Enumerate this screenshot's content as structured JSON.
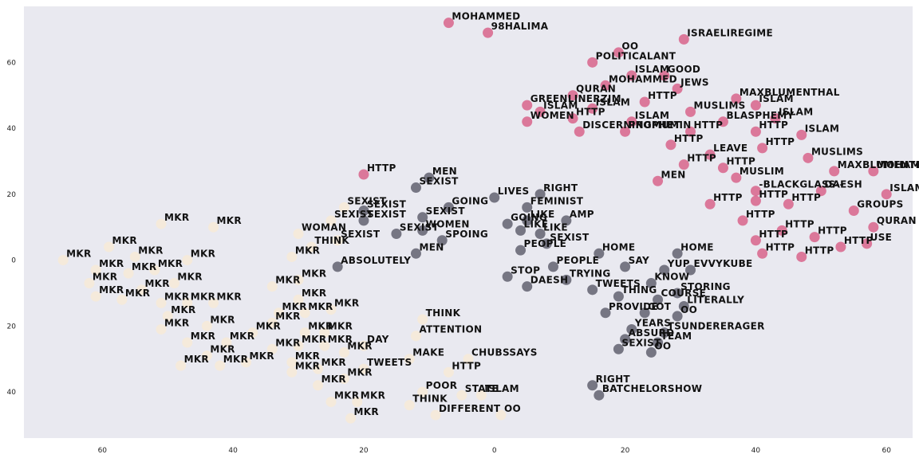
{
  "chart_data": {
    "type": "scatter",
    "title": "",
    "xlabel": "",
    "ylabel": "",
    "xlim": [
      -72,
      64
    ],
    "ylim": [
      -54,
      77
    ],
    "x_axis_inverted": true,
    "y_axis_inverted": true,
    "xticks": [
      -60,
      -40,
      -20,
      0,
      20,
      40,
      60
    ],
    "yticks": [
      -40,
      -20,
      0,
      20,
      40,
      60
    ],
    "xtick_labels": [
      "60",
      "40",
      "20",
      "0",
      "20",
      "40",
      "60"
    ],
    "ytick_labels": [
      "40",
      "20",
      "0",
      "20",
      "40",
      "60"
    ],
    "grid": false,
    "background_color": "#e9e9f0",
    "legend": null,
    "colors": {
      "crimson": "#d6517d",
      "dark": "#4f4f5f",
      "beige": "#f6ead8"
    },
    "series": [
      {
        "color": "#d6517d",
        "points": [
          {
            "x": -7,
            "y": 72,
            "label": "MOHAMMED"
          },
          {
            "x": -1,
            "y": 69,
            "label": "98HALIMA"
          },
          {
            "x": 15,
            "y": 60,
            "label": "POLITICALANT"
          },
          {
            "x": 29,
            "y": 67,
            "label": "ISRAELIREGIME"
          },
          {
            "x": 19,
            "y": 63,
            "label": "OO"
          },
          {
            "x": 21,
            "y": 56,
            "label": "ISLAM"
          },
          {
            "x": 26,
            "y": 56,
            "label": "GOOD"
          },
          {
            "x": 17,
            "y": 53,
            "label": "MOHAMMED"
          },
          {
            "x": 28,
            "y": 52,
            "label": "JEWS"
          },
          {
            "x": 37,
            "y": 49,
            "label": "MAXBLUMENTHAL"
          },
          {
            "x": 12,
            "y": 50,
            "label": "QURAN"
          },
          {
            "x": 23,
            "y": 48,
            "label": "HTTP"
          },
          {
            "x": 40,
            "y": 47,
            "label": "ISLAM"
          },
          {
            "x": 5,
            "y": 47,
            "label": "GREENLINERZJM"
          },
          {
            "x": 15,
            "y": 46,
            "label": "ISLAM"
          },
          {
            "x": 30,
            "y": 45,
            "label": "MUSLIMS"
          },
          {
            "x": 7,
            "y": 45,
            "label": "ISLAM"
          },
          {
            "x": 12,
            "y": 43,
            "label": "HTTP"
          },
          {
            "x": 21,
            "y": 42,
            "label": "ISLAM"
          },
          {
            "x": 35,
            "y": 42,
            "label": "BLASPHEMY"
          },
          {
            "x": 43,
            "y": 43,
            "label": "ISLAM"
          },
          {
            "x": 5,
            "y": 42,
            "label": "WOMEN"
          },
          {
            "x": 13,
            "y": 39,
            "label": "DISCERNINGMUMIN"
          },
          {
            "x": 20,
            "y": 39,
            "label": "PROPHET"
          },
          {
            "x": 30,
            "y": 39,
            "label": "HTTP"
          },
          {
            "x": 40,
            "y": 39,
            "label": "HTTP"
          },
          {
            "x": 47,
            "y": 38,
            "label": "ISLAM"
          },
          {
            "x": 41,
            "y": 34,
            "label": "HTTP"
          },
          {
            "x": 27,
            "y": 35,
            "label": "HTTP"
          },
          {
            "x": 33,
            "y": 32,
            "label": "LEAVE"
          },
          {
            "x": 29,
            "y": 29,
            "label": "HTTP"
          },
          {
            "x": 35,
            "y": 28,
            "label": "HTTP"
          },
          {
            "x": 48,
            "y": 31,
            "label": "MUSLIMS"
          },
          {
            "x": 37,
            "y": 25,
            "label": "MUSLIM"
          },
          {
            "x": 25,
            "y": 24,
            "label": "MEN"
          },
          {
            "x": 52,
            "y": 27,
            "label": "MAXBLUMENTHAL"
          },
          {
            "x": 58,
            "y": 27,
            "label": "MOHAMMED"
          },
          {
            "x": 40,
            "y": 21,
            "label": "-BLACKGLASS--"
          },
          {
            "x": 50,
            "y": 21,
            "label": "DAESH"
          },
          {
            "x": 60,
            "y": 20,
            "label": "ISLAM"
          },
          {
            "x": 33,
            "y": 17,
            "label": "HTTP"
          },
          {
            "x": 40,
            "y": 18,
            "label": "HTTP"
          },
          {
            "x": 45,
            "y": 17,
            "label": "HTTP"
          },
          {
            "x": 55,
            "y": 15,
            "label": "GROUPS"
          },
          {
            "x": -20,
            "y": 26,
            "label": "HTTP"
          },
          {
            "x": 38,
            "y": 12,
            "label": "HTTP"
          },
          {
            "x": 58,
            "y": 10,
            "label": "QURAN"
          },
          {
            "x": 44,
            "y": 9,
            "label": "HTTP"
          },
          {
            "x": 49,
            "y": 7,
            "label": "HTTP"
          },
          {
            "x": 40,
            "y": 6,
            "label": "HTTP"
          },
          {
            "x": 57,
            "y": 5,
            "label": "USE"
          },
          {
            "x": 53,
            "y": 4,
            "label": "HTTP"
          },
          {
            "x": 41,
            "y": 2,
            "label": "HTTP"
          },
          {
            "x": 47,
            "y": 1,
            "label": "HTTP"
          }
        ]
      },
      {
        "color": "#4f4f5f",
        "points": [
          {
            "x": -10,
            "y": 25,
            "label": "MEN"
          },
          {
            "x": -12,
            "y": 22,
            "label": "SEXIST"
          },
          {
            "x": 0,
            "y": 19,
            "label": "LIVES"
          },
          {
            "x": 7,
            "y": 20,
            "label": "RIGHT"
          },
          {
            "x": -7,
            "y": 16,
            "label": "GOING"
          },
          {
            "x": 5,
            "y": 16,
            "label": "FEMINIST"
          },
          {
            "x": -20,
            "y": 15,
            "label": "SEXIST"
          },
          {
            "x": -11,
            "y": 13,
            "label": "SEXIST"
          },
          {
            "x": 5,
            "y": 12,
            "label": "LIKE"
          },
          {
            "x": 11,
            "y": 12,
            "label": "AMP"
          },
          {
            "x": -20,
            "y": 12,
            "label": "SEXIST"
          },
          {
            "x": 2,
            "y": 11,
            "label": "GOING"
          },
          {
            "x": 4,
            "y": 9,
            "label": "LIKE"
          },
          {
            "x": 7,
            "y": 8,
            "label": "LIKE"
          },
          {
            "x": -15,
            "y": 8,
            "label": "SEXIST"
          },
          {
            "x": -11,
            "y": 9,
            "label": "WOMEN"
          },
          {
            "x": -8,
            "y": 6,
            "label": "SPOING"
          },
          {
            "x": 8,
            "y": 5,
            "label": "SEXIST"
          },
          {
            "x": -12,
            "y": 2,
            "label": "MEN"
          },
          {
            "x": 4,
            "y": 3,
            "label": "PEOPLE"
          },
          {
            "x": 16,
            "y": 2,
            "label": "HOME"
          },
          {
            "x": 28,
            "y": 2,
            "label": "HOME"
          },
          {
            "x": -24,
            "y": -2,
            "label": "ABSOLUTELY"
          },
          {
            "x": 9,
            "y": -2,
            "label": "PEOPLE"
          },
          {
            "x": 20,
            "y": -2,
            "label": "SAY"
          },
          {
            "x": 26,
            "y": -3,
            "label": "YUP"
          },
          {
            "x": 30,
            "y": -3,
            "label": "EVVYKUBE"
          },
          {
            "x": 2,
            "y": -5,
            "label": "STOP"
          },
          {
            "x": 11,
            "y": -6,
            "label": "TRYING"
          },
          {
            "x": 24,
            "y": -7,
            "label": "KNOW"
          },
          {
            "x": 5,
            "y": -8,
            "label": "DAESH"
          },
          {
            "x": 15,
            "y": -9,
            "label": "TWEETS"
          },
          {
            "x": 28,
            "y": -10,
            "label": "STORING"
          },
          {
            "x": 19,
            "y": -11,
            "label": "THING"
          },
          {
            "x": 25,
            "y": -12,
            "label": "COURSE"
          },
          {
            "x": 29,
            "y": -14,
            "label": "LITERALLY"
          },
          {
            "x": 17,
            "y": -16,
            "label": "PROVIDE"
          },
          {
            "x": 23,
            "y": -16,
            "label": "GOT"
          },
          {
            "x": 28,
            "y": -17,
            "label": "OO"
          },
          {
            "x": 21,
            "y": -21,
            "label": "YEARS"
          },
          {
            "x": 26,
            "y": -22,
            "label": "TSUNDERERAGER"
          },
          {
            "x": 20,
            "y": -24,
            "label": "ABSURD"
          },
          {
            "x": 25,
            "y": -25,
            "label": "TEAM"
          },
          {
            "x": 19,
            "y": -27,
            "label": "SEXIST"
          },
          {
            "x": 24,
            "y": -28,
            "label": "OO"
          },
          {
            "x": 15,
            "y": -38,
            "label": "RIGHT"
          },
          {
            "x": 16,
            "y": -41,
            "label": "BATCHELORSHOW"
          }
        ]
      },
      {
        "color": "#f6ead8",
        "points": [
          {
            "x": -51,
            "y": 11,
            "label": "MKR"
          },
          {
            "x": -43,
            "y": 10,
            "label": "MKR"
          },
          {
            "x": -59,
            "y": 4,
            "label": "MKR"
          },
          {
            "x": -55,
            "y": 1,
            "label": "MKR"
          },
          {
            "x": -66,
            "y": 0,
            "label": "MKR"
          },
          {
            "x": -61,
            "y": -3,
            "label": "MKR"
          },
          {
            "x": -56,
            "y": -4,
            "label": "MKR"
          },
          {
            "x": -52,
            "y": -3,
            "label": "MKR"
          },
          {
            "x": -47,
            "y": 0,
            "label": "MKR"
          },
          {
            "x": -62,
            "y": -7,
            "label": "MKR"
          },
          {
            "x": -54,
            "y": -9,
            "label": "MKR"
          },
          {
            "x": -49,
            "y": -7,
            "label": "MKR"
          },
          {
            "x": -61,
            "y": -11,
            "label": "MKR"
          },
          {
            "x": -57,
            "y": -12,
            "label": "MKR"
          },
          {
            "x": -51,
            "y": -13,
            "label": "MKR"
          },
          {
            "x": -47,
            "y": -13,
            "label": "MKR"
          },
          {
            "x": -43,
            "y": -13,
            "label": "MKR"
          },
          {
            "x": -50,
            "y": -17,
            "label": "MKR"
          },
          {
            "x": -51,
            "y": -21,
            "label": "MKR"
          },
          {
            "x": -47,
            "y": -25,
            "label": "MKR"
          },
          {
            "x": -44,
            "y": -20,
            "label": "MKR"
          },
          {
            "x": -41,
            "y": -25,
            "label": "MKR"
          },
          {
            "x": -44,
            "y": -29,
            "label": "MKR"
          },
          {
            "x": -48,
            "y": -32,
            "label": "MKR"
          },
          {
            "x": -42,
            "y": -32,
            "label": "MKR"
          },
          {
            "x": -38,
            "y": -31,
            "label": "MKR"
          },
          {
            "x": -37,
            "y": -22,
            "label": "MKR"
          },
          {
            "x": -33,
            "y": -16,
            "label": "MKR"
          },
          {
            "x": -34,
            "y": -19,
            "label": "MKR"
          },
          {
            "x": -29,
            "y": -16,
            "label": "MKR"
          },
          {
            "x": -34,
            "y": -8,
            "label": "MKR"
          },
          {
            "x": -30,
            "y": -6,
            "label": "MKR"
          },
          {
            "x": -30,
            "y": -12,
            "label": "MKR"
          },
          {
            "x": -31,
            "y": 1,
            "label": "MKR"
          },
          {
            "x": -25,
            "y": -15,
            "label": "MKR"
          },
          {
            "x": -34,
            "y": -27,
            "label": "MKR"
          },
          {
            "x": -29,
            "y": -22,
            "label": "MKR"
          },
          {
            "x": -26,
            "y": -22,
            "label": "MKR"
          },
          {
            "x": -30,
            "y": -26,
            "label": "MKR"
          },
          {
            "x": -26,
            "y": -26,
            "label": "MKR"
          },
          {
            "x": -23,
            "y": -28,
            "label": "MKR"
          },
          {
            "x": -31,
            "y": -31,
            "label": "MKR"
          },
          {
            "x": -31,
            "y": -34,
            "label": "MKR"
          },
          {
            "x": -27,
            "y": -33,
            "label": "MKR"
          },
          {
            "x": -23,
            "y": -36,
            "label": "MKR"
          },
          {
            "x": -27,
            "y": -38,
            "label": "MKR"
          },
          {
            "x": -25,
            "y": -43,
            "label": "MKR"
          },
          {
            "x": -21,
            "y": -43,
            "label": "MKR"
          },
          {
            "x": -22,
            "y": -48,
            "label": "MKR"
          },
          {
            "x": -20,
            "y": -26,
            "label": "DAY"
          },
          {
            "x": -20,
            "y": -33,
            "label": "TWEETS"
          },
          {
            "x": -13,
            "y": -30,
            "label": "MAKE"
          },
          {
            "x": -11,
            "y": -18,
            "label": "THINK"
          },
          {
            "x": -12,
            "y": -23,
            "label": "ATTENTION"
          },
          {
            "x": -4,
            "y": -30,
            "label": "CHUBSSAYS"
          },
          {
            "x": -7,
            "y": -34,
            "label": "HTTP"
          },
          {
            "x": -11,
            "y": -40,
            "label": "POOR"
          },
          {
            "x": -5,
            "y": -41,
            "label": "STATE"
          },
          {
            "x": -13,
            "y": -44,
            "label": "THINK"
          },
          {
            "x": -9,
            "y": -47,
            "label": "DIFFERENT"
          },
          {
            "x": -2,
            "y": -41,
            "label": "ISLAM"
          },
          {
            "x": 1,
            "y": -47,
            "label": "OO"
          },
          {
            "x": -28,
            "y": 4,
            "label": "THINK"
          },
          {
            "x": -30,
            "y": 8,
            "label": "WOMAN"
          },
          {
            "x": -25,
            "y": 12,
            "label": "SEXIST"
          },
          {
            "x": -23,
            "y": 16,
            "label": "SEXIST"
          },
          {
            "x": -24,
            "y": 6,
            "label": "SEXIST"
          }
        ]
      }
    ]
  }
}
